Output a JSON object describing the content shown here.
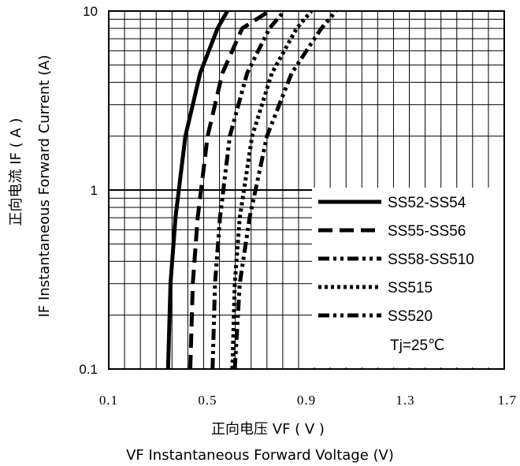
{
  "chart_data": {
    "type": "line",
    "x_axis": {
      "scale": "linear",
      "range": [
        0.1,
        1.7
      ],
      "ticks": [
        0.1,
        0.5,
        0.9,
        1.3,
        1.7
      ],
      "tick_labels": [
        "0.1",
        "0.5",
        "0.9",
        "1.3",
        "1.7"
      ],
      "label_line1": "正向电压  VF ( V )",
      "label_line2": "VF Instantaneous Forward Voltage (V)"
    },
    "y_axis": {
      "scale": "log",
      "range": [
        0.1,
        10
      ],
      "ticks": [
        0.1,
        1,
        10
      ],
      "tick_labels": [
        "0.1",
        "1",
        "10"
      ],
      "label_line1": "正向电流 IF ( A )",
      "label_line2": "IF Instantaneous Forward Current (A)"
    },
    "grid": true,
    "legend_position": "lower-right",
    "annotation": "Tj=25℃",
    "series": [
      {
        "name": "SS52-SS54",
        "style": "solid",
        "x": [
          0.34,
          0.35,
          0.37,
          0.41,
          0.47,
          0.54,
          0.58
        ],
        "y": [
          0.1,
          0.3,
          0.7,
          2,
          4.5,
          8,
          10
        ]
      },
      {
        "name": "SS55-SS56",
        "style": "dash",
        "x": [
          0.43,
          0.44,
          0.46,
          0.5,
          0.56,
          0.64,
          0.75
        ],
        "y": [
          0.1,
          0.3,
          0.7,
          2,
          4.5,
          8,
          10
        ]
      },
      {
        "name": "SS58-SS510",
        "style": "dashdotdot",
        "x": [
          0.52,
          0.53,
          0.55,
          0.59,
          0.66,
          0.75,
          0.81
        ],
        "y": [
          0.1,
          0.3,
          0.7,
          2,
          4.5,
          8,
          10
        ]
      },
      {
        "name": "SS515",
        "style": "dot",
        "x": [
          0.6,
          0.61,
          0.63,
          0.68,
          0.76,
          0.86,
          0.92
        ],
        "y": [
          0.1,
          0.3,
          0.7,
          2,
          4.5,
          8,
          10
        ]
      },
      {
        "name": "SS520",
        "style": "dashdotdot",
        "x": [
          0.61,
          0.63,
          0.67,
          0.74,
          0.84,
          0.96,
          1.02
        ],
        "y": [
          0.1,
          0.3,
          0.7,
          2,
          4.5,
          8,
          10
        ]
      }
    ]
  }
}
